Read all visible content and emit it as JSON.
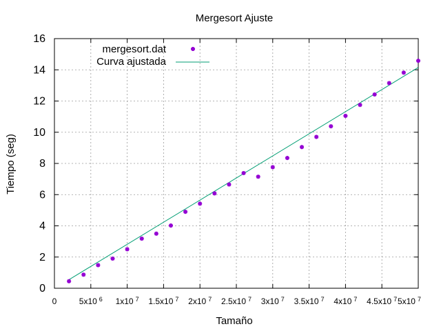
{
  "chart_data": {
    "type": "scatter",
    "title": "Mergesort Ajuste",
    "xlabel": "Tamaño",
    "ylabel": "Tiempo (seg)",
    "xlim": [
      0,
      50000000
    ],
    "ylim": [
      0,
      16
    ],
    "grid": true,
    "legend_position": "top-left",
    "x_ticks": [
      {
        "value": 0,
        "mant": "0",
        "exp": ""
      },
      {
        "value": 5000000,
        "mant": "5x10",
        "exp": "6"
      },
      {
        "value": 10000000,
        "mant": "1x10",
        "exp": "7"
      },
      {
        "value": 15000000,
        "mant": "1.5x10",
        "exp": "7"
      },
      {
        "value": 20000000,
        "mant": "2x10",
        "exp": "7"
      },
      {
        "value": 25000000,
        "mant": "2.5x10",
        "exp": "7"
      },
      {
        "value": 30000000,
        "mant": "3x10",
        "exp": "7"
      },
      {
        "value": 35000000,
        "mant": "3.5x10",
        "exp": "7"
      },
      {
        "value": 40000000,
        "mant": "4x10",
        "exp": "7"
      },
      {
        "value": 45000000,
        "mant": "4.5x10",
        "exp": "7"
      },
      {
        "value": 50000000,
        "mant": "5x10",
        "exp": "7"
      }
    ],
    "y_ticks": [
      0,
      2,
      4,
      6,
      8,
      10,
      12,
      14,
      16
    ],
    "series": [
      {
        "name": "mergesort.dat",
        "kind": "points",
        "color": "#9400d3",
        "points": [
          [
            2000000,
            0.45
          ],
          [
            4000000,
            0.87
          ],
          [
            6000000,
            1.48
          ],
          [
            8000000,
            1.9
          ],
          [
            10000000,
            2.5
          ],
          [
            12000000,
            3.18
          ],
          [
            14000000,
            3.5
          ],
          [
            16000000,
            4.02
          ],
          [
            18000000,
            4.9
          ],
          [
            20000000,
            5.42
          ],
          [
            22000000,
            6.08
          ],
          [
            24000000,
            6.65
          ],
          [
            26000000,
            7.38
          ],
          [
            28000000,
            7.15
          ],
          [
            30000000,
            7.76
          ],
          [
            32000000,
            8.35
          ],
          [
            34000000,
            9.05
          ],
          [
            36000000,
            9.7
          ],
          [
            38000000,
            10.38
          ],
          [
            40000000,
            11.05
          ],
          [
            42000000,
            11.75
          ],
          [
            44000000,
            12.42
          ],
          [
            46000000,
            13.15
          ],
          [
            48000000,
            13.82
          ],
          [
            50000000,
            14.58
          ]
        ]
      },
      {
        "name": "Curva ajustada",
        "kind": "line",
        "color": "#009e73",
        "points": [
          [
            2000000,
            0.55
          ],
          [
            50000000,
            14.15
          ]
        ]
      }
    ]
  }
}
